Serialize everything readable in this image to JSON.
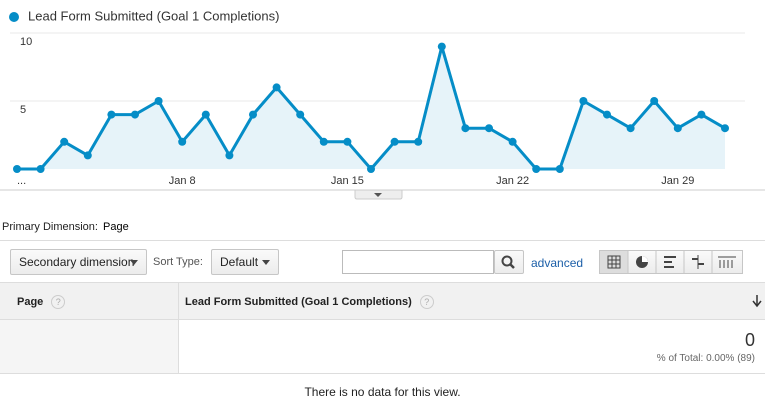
{
  "chart_data": {
    "type": "line",
    "categories": [
      "...",
      null,
      null,
      null,
      null,
      null,
      null,
      "Jan 8",
      null,
      null,
      null,
      null,
      null,
      null,
      "Jan 15",
      null,
      null,
      null,
      null,
      null,
      null,
      "Jan 22",
      null,
      null,
      null,
      null,
      null,
      null,
      "Jan 29",
      null,
      null
    ],
    "series": [
      {
        "name": "Lead Form Submitted (Goal 1 Completions)",
        "color": "#058dc7",
        "values": [
          0,
          0,
          2,
          1,
          4,
          4,
          5,
          2,
          4,
          1,
          4,
          6,
          4,
          2,
          2,
          0,
          2,
          2,
          9,
          3,
          3,
          2,
          0,
          0,
          5,
          4,
          3,
          5,
          3,
          4,
          3
        ]
      }
    ],
    "ylim": [
      0,
      10
    ],
    "yticks": [
      5,
      10
    ],
    "grid": true,
    "area_color": "#e6f3f9"
  },
  "controls": {
    "primary_label": "Primary Dimension:",
    "primary_value": "Page",
    "secondary": "Secondary dimension",
    "sort_label": "Sort Type:",
    "sort_value": "Default",
    "advanced": "advanced"
  },
  "table": {
    "headers": [
      "Page",
      "Lead Form Submitted (Goal 1 Completions)"
    ],
    "total": 0,
    "total_note": "% of Total: 0.00% (89)",
    "empty": "There is no data for this view."
  }
}
